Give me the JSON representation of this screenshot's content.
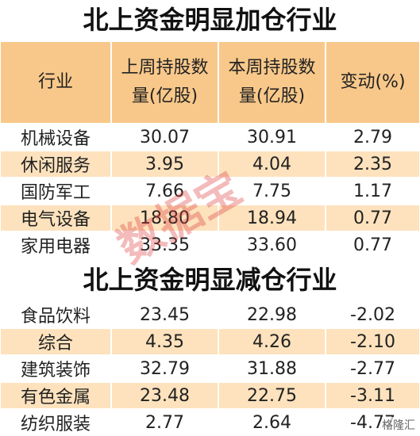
{
  "sections": [
    {
      "title": "北上资金明显加仓行业",
      "header": [
        "行业",
        "上周持股数量(亿股)",
        "本周持股数量(亿股)",
        "变动(%)"
      ],
      "rows": [
        [
          "机械设备",
          "30.07",
          "30.91",
          "2.79"
        ],
        [
          "休闲服务",
          "3.95",
          "4.04",
          "2.35"
        ],
        [
          "国防军工",
          "7.66",
          "7.75",
          "1.17"
        ],
        [
          "电气设备",
          "18.80",
          "18.94",
          "0.77"
        ],
        [
          "家用电器",
          "33.35",
          "33.60",
          "0.77"
        ]
      ]
    },
    {
      "title": "北上资金明显减仓行业",
      "rows": [
        [
          "食品饮料",
          "23.45",
          "22.98",
          "-2.02"
        ],
        [
          "综合",
          "4.35",
          "4.26",
          "-2.10"
        ],
        [
          "建筑装饰",
          "32.79",
          "31.88",
          "-2.77"
        ],
        [
          "有色金属",
          "23.48",
          "22.75",
          "-3.11"
        ],
        [
          "纺织服装",
          "2.77",
          "2.64",
          "-4.77"
        ]
      ]
    }
  ],
  "watermark": "数据宝",
  "logo": "格隆汇"
}
